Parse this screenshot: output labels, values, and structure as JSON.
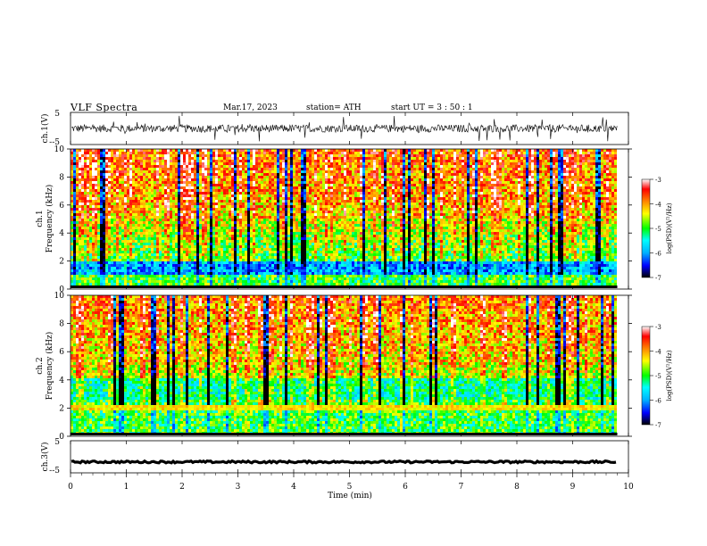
{
  "header": {
    "title": "VLF  Spectra",
    "date": "Mar.17, 2023",
    "station": "station= ATH",
    "start": "start  UT  =    3  : 50 : 1"
  },
  "chart_data": [
    {
      "type": "line",
      "panel": "ch1-waveform",
      "ylabel": "ch.1(V)",
      "ylim": [
        -5,
        5
      ],
      "yticks": [
        5,
        -5
      ],
      "xlim": [
        0,
        10
      ],
      "x_data_end": 9.8,
      "series": [
        {
          "color": "#000000",
          "baseline": 0,
          "noise_amplitude": 1.2,
          "spike_max": 4
        }
      ]
    },
    {
      "type": "heatmap",
      "panel": "ch1-spectrogram",
      "ylabel": "ch.1 Frequency (kHz)",
      "ylim": [
        0,
        10
      ],
      "yticks": [
        0,
        2,
        4,
        6,
        8,
        10
      ],
      "xlim": [
        0,
        10
      ],
      "x_data_end": 9.8,
      "colorbar": {
        "label": "log(PSD)(V²/Hz)",
        "range": [
          -7,
          -3
        ],
        "ticks": [
          -3,
          -4,
          -5,
          -6,
          -7
        ]
      },
      "features": {
        "low_freq_band_khz": [
          1.0,
          2.0
        ],
        "low_freq_band_value": -6.0,
        "upper_band_value": -4.2
      }
    },
    {
      "type": "heatmap",
      "panel": "ch2-spectrogram",
      "ylabel": "ch.2 Frequency (kHz)",
      "ylim": [
        0,
        10
      ],
      "yticks": [
        0,
        2,
        4,
        6,
        8,
        10
      ],
      "xlim": [
        0,
        10
      ],
      "x_data_end": 9.8,
      "colorbar": {
        "label": "log(PSD)(V²/Hz)",
        "range": [
          -7,
          -3
        ],
        "ticks": [
          -3,
          -4,
          -5,
          -6,
          -7
        ]
      },
      "features": {
        "low_freq_band_khz": [
          2.5,
          4.0
        ],
        "low_freq_band_value": -5.3,
        "upper_band_value": -4.3
      }
    },
    {
      "type": "line",
      "panel": "ch3-waveform",
      "ylabel": "ch.3(V)",
      "ylim": [
        -5,
        5
      ],
      "yticks": [
        5,
        -5
      ],
      "xlim": [
        0,
        10
      ],
      "x_data_end": 9.8,
      "xlabel": "Time  (min)",
      "xticks": [
        0,
        1,
        2,
        3,
        4,
        5,
        6,
        7,
        8,
        9,
        10
      ],
      "series": [
        {
          "color": "#000000",
          "baseline": -1.6,
          "noise_amplitude": 0.3
        }
      ]
    }
  ],
  "colors": {
    "colormap": [
      "#000000",
      "#0000ff",
      "#00a0ff",
      "#00ffff",
      "#00ff00",
      "#ffff00",
      "#ff8000",
      "#ff0000",
      "#ffffff"
    ],
    "axes": "#000000"
  }
}
